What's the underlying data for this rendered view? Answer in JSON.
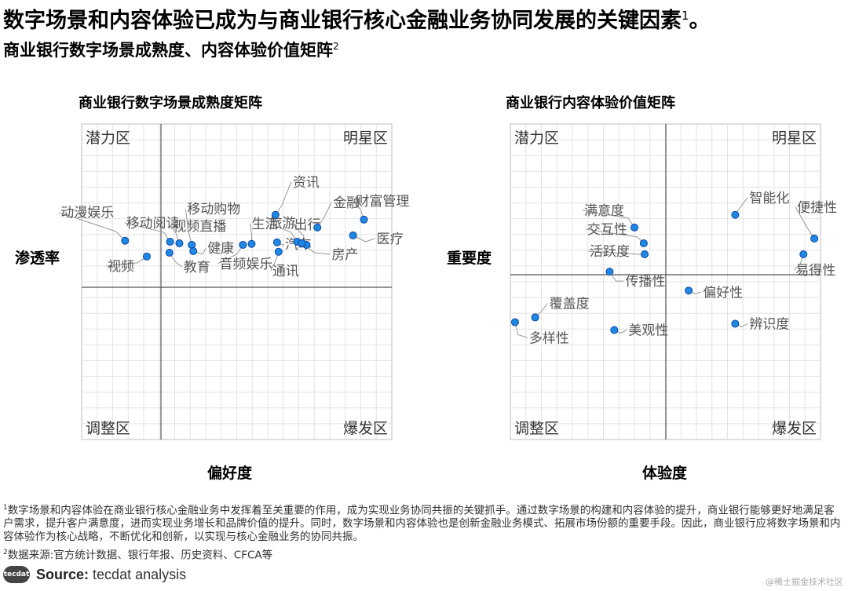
{
  "header": {
    "title": "数字场景和内容体验已成为与商业银行核心金融业务协同发展的关键因素",
    "title_sup": "1",
    "title_end": "。",
    "subtitle": "商业银行数字场景成熟度、内容体验价值矩阵",
    "subtitle_sup": "2"
  },
  "chart_data": [
    {
      "type": "scatter",
      "title": "商业银行数字场景成熟度矩阵",
      "xlabel": "偏好度",
      "ylabel": "渗透率",
      "xlim": [
        0,
        100
      ],
      "ylim": [
        0,
        100
      ],
      "quadrants": {
        "top_left": "潜力区",
        "top_right": "明星区",
        "bottom_left": "调整区",
        "bottom_right": "爆发区"
      },
      "point_color": "#1e88e5",
      "points": [
        {
          "label": "动漫娱乐",
          "x": 14,
          "y": 63
        },
        {
          "label": "视频",
          "x": 21,
          "y": 58
        },
        {
          "label": "移动阅读",
          "x": 28.5,
          "y": 62.7
        },
        {
          "label": "教育",
          "x": 28.3,
          "y": 59.2
        },
        {
          "label": "视频直播",
          "x": 31.5,
          "y": 62.2
        },
        {
          "label": "移动购物",
          "x": 35.5,
          "y": 61.7
        },
        {
          "label": "健康",
          "x": 36,
          "y": 59.7
        },
        {
          "label": "音频娱乐",
          "x": 52,
          "y": 61.7
        },
        {
          "label": "生活",
          "x": 54.8,
          "y": 62
        },
        {
          "label": "汽车",
          "x": 63,
          "y": 62.5
        },
        {
          "label": "通讯",
          "x": 63.5,
          "y": 59.5
        },
        {
          "label": "资讯",
          "x": 62.5,
          "y": 71.2
        },
        {
          "label": "旅游",
          "x": 69.5,
          "y": 62.7
        },
        {
          "label": "出行",
          "x": 72.5,
          "y": 61.7
        },
        {
          "label": "房产",
          "x": 71,
          "y": 62.2
        },
        {
          "label": "金融",
          "x": 76,
          "y": 67.2
        },
        {
          "label": "医疗",
          "x": 87.5,
          "y": 64.7
        },
        {
          "label": "财富管理",
          "x": 91,
          "y": 69.7
        }
      ]
    },
    {
      "type": "scatter",
      "title": "商业银行内容体验价值矩阵",
      "xlabel": "体验度",
      "ylabel": "重要度",
      "xlim": [
        0,
        100
      ],
      "ylim": [
        0,
        100
      ],
      "quadrants": {
        "top_left": "潜力区",
        "top_right": "明星区",
        "bottom_left": "调整区",
        "bottom_right": "爆发区"
      },
      "point_color": "#1e88e5",
      "points": [
        {
          "label": "满意度",
          "x": 40,
          "y": 67.2
        },
        {
          "label": "交互性",
          "x": 43,
          "y": 62.2
        },
        {
          "label": "活跃度",
          "x": 43.3,
          "y": 58.7
        },
        {
          "label": "传播性",
          "x": 32,
          "y": 53.2
        },
        {
          "label": "偏好性",
          "x": 57.5,
          "y": 47.2
        },
        {
          "label": "覆盖度",
          "x": 8,
          "y": 38.7
        },
        {
          "label": "多样性",
          "x": 1.5,
          "y": 37.2
        },
        {
          "label": "美观性",
          "x": 33.5,
          "y": 34.7
        },
        {
          "label": "智能化",
          "x": 72.5,
          "y": 71.2
        },
        {
          "label": "便捷性",
          "x": 98,
          "y": 63.7
        },
        {
          "label": "易得性",
          "x": 94.5,
          "y": 58.7
        },
        {
          "label": "辨识度",
          "x": 72.5,
          "y": 36.7
        }
      ]
    }
  ],
  "footnotes": {
    "note1_marker": "1",
    "note1": "数字场景和内容体验在商业银行核心金融业务中发挥着至关重要的作用，成为实现业务协同共振的关键抓手。通过数字场景的构建和内容体验的提升，商业银行能够更好地满足客户需求，提升客户满意度，进而实现业务增长和品牌价值的提升。同时，数字场景和内容体验也是创新金融业务模式、拓展市场份额的重要手段。因此，商业银行应将数字场景和内容体验作为核心战略，不断优化和创新，以实现与核心金融业务的协同共振。",
    "note2_marker": "2",
    "note2": "数据来源:官方统计数据、银行年报、历史资料、CFCA等"
  },
  "source": {
    "logo_text": "tecdat",
    "label": "Source:",
    "text": "tecdat analysis"
  },
  "watermark": "@稀土掘金技术社区"
}
